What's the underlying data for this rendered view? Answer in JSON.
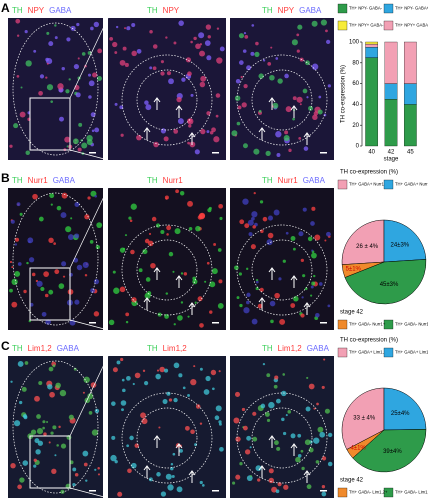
{
  "panels": [
    {
      "letter": "A",
      "images": [
        [
          "TH",
          "NPY",
          "GABA"
        ],
        [
          "TH",
          "NPY"
        ],
        [
          "TH",
          "NPY",
          "GABA"
        ]
      ]
    },
    {
      "letter": "B",
      "images": [
        [
          "TH",
          "Nurr1",
          "GABA"
        ],
        [
          "TH",
          "Nurr1"
        ],
        [
          "TH",
          "Nurr1",
          "GABA"
        ]
      ]
    },
    {
      "letter": "C",
      "images": [
        [
          "TH",
          "Lim1,2",
          "GABA"
        ],
        [
          "TH",
          "Lim1,2"
        ],
        [
          "TH",
          "Lim1,2",
          "GABA"
        ]
      ]
    }
  ],
  "chart_data": [
    {
      "type": "bar",
      "y_label": "TH co-expression (%)",
      "x_label": "stage",
      "categories": [
        "40",
        "42",
        "45"
      ],
      "series": [
        {
          "name": "TH+ NPY- GABA-",
          "color": "#2e9b4a",
          "values": [
            85,
            45,
            40
          ]
        },
        {
          "name": "TH+ NPY- GABA+",
          "color": "#2fa6e0",
          "values": [
            10,
            15,
            20
          ]
        },
        {
          "name": "TH+ NPY+ GABA+",
          "color": "#f2a0b4",
          "values": [
            3,
            40,
            40
          ]
        },
        {
          "name": "TH+ NPY+ GABA-",
          "color": "#f7ec3a",
          "values": [
            2,
            0,
            0
          ]
        }
      ],
      "ylim": [
        0,
        100
      ],
      "yticks": [
        0,
        20,
        40,
        60,
        80,
        100
      ]
    },
    {
      "type": "pie",
      "title": "TH co-expression (%)",
      "note": "stage 42",
      "series": [
        {
          "name": "TH+ GABA+ Nurr1+",
          "color": "#f2a0b4",
          "values": [
            26
          ],
          "value_labels": [
            "26 ± 4%"
          ]
        },
        {
          "name": "TH+ GABA+ Nurr1-",
          "color": "#2fa6e0",
          "values": [
            24
          ],
          "value_labels": [
            "24±3%"
          ]
        },
        {
          "name": "TH+ GABA- Nurr1-",
          "color": "#2e9b4a",
          "values": [
            45
          ],
          "value_labels": [
            "45±3%"
          ]
        },
        {
          "name": "TH+ GABA- Nurr1+",
          "color": "#f08a2c",
          "values": [
            5
          ],
          "value_labels": [
            "5±1%"
          ]
        }
      ]
    },
    {
      "type": "pie",
      "title": "TH co-expression (%)",
      "note": "stage 42",
      "series": [
        {
          "name": "TH+ GABA+ Lim1,2-",
          "color": "#f2a0b4",
          "values": [
            33
          ],
          "value_labels": [
            "33 ± 4%"
          ]
        },
        {
          "name": "TH+ GABA+ Lim1,2+",
          "color": "#2fa6e0",
          "values": [
            25
          ],
          "value_labels": [
            "25±4%"
          ]
        },
        {
          "name": "TH+ GABA- Lim1,2-",
          "color": "#2e9b4a",
          "values": [
            39
          ],
          "value_labels": [
            "39±4%"
          ]
        },
        {
          "name": "TH+ GABA- Lim1,2+",
          "color": "#f08a2c",
          "values": [
            4
          ],
          "value_labels": [
            "4±1%"
          ]
        }
      ]
    }
  ]
}
